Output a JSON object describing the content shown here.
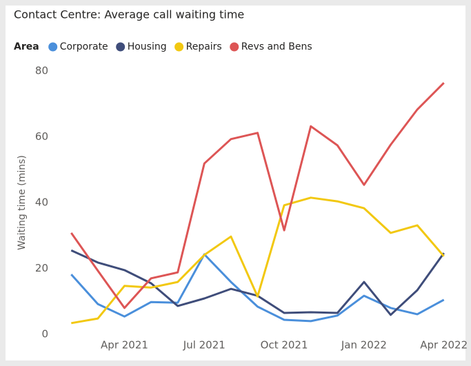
{
  "chart_data": {
    "type": "line",
    "title": "Contact Centre: Average call waiting time",
    "legend_title": "Area",
    "y_label": "Waiting time (mins)",
    "categories": [
      null,
      null,
      "Apr 2021",
      null,
      null,
      "Jul 2021",
      null,
      null,
      "Oct 2021",
      null,
      null,
      "Jan 2022",
      null,
      null,
      "Apr 2022"
    ],
    "series": [
      {
        "name": "Corporate",
        "color": "#4a8fdb",
        "values": [
          18.2,
          9.2,
          5.4,
          9.8,
          9.6,
          24.3,
          15.9,
          8.4,
          4.4,
          4.0,
          5.7,
          11.7,
          8.0,
          6.1,
          10.5
        ]
      },
      {
        "name": "Housing",
        "color": "#3f4d7a",
        "values": [
          25.5,
          21.8,
          19.5,
          15.5,
          8.6,
          10.9,
          13.8,
          11.7,
          6.5,
          6.7,
          6.5,
          15.9,
          5.9,
          13.4,
          24.7
        ]
      },
      {
        "name": "Repairs",
        "color": "#f2c811",
        "values": [
          3.4,
          4.8,
          14.7,
          14.2,
          15.9,
          24.1,
          29.7,
          11.5,
          39.2,
          41.5,
          40.4,
          38.3,
          30.8,
          33.1,
          23.7
        ]
      },
      {
        "name": "Revs and Bens",
        "color": "#dd5555",
        "values": [
          30.8,
          19.3,
          8.0,
          17.0,
          18.8,
          51.9,
          59.3,
          61.2,
          31.6,
          63.2,
          57.4,
          45.4,
          57.6,
          68.3,
          76.4
        ]
      }
    ],
    "ylim": [
      0,
      80
    ],
    "yticks": [
      0,
      20,
      40,
      60,
      80
    ],
    "grid": false
  }
}
